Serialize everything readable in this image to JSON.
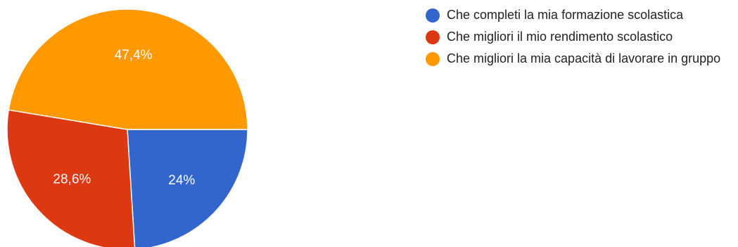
{
  "chart_data": {
    "type": "pie",
    "labels": [
      "Che completi la mia formazione scolastica",
      "Che migliori il mio rendimento scolastico",
      "Che migliori la mia capacità di lavorare in gruppo"
    ],
    "values": [
      24,
      28.6,
      47.4
    ],
    "value_labels": [
      "24%",
      "28,6%",
      "47,4%"
    ],
    "colors": [
      "#3366cc",
      "#dc3912",
      "#ff9900"
    ],
    "legend_position": "right"
  }
}
